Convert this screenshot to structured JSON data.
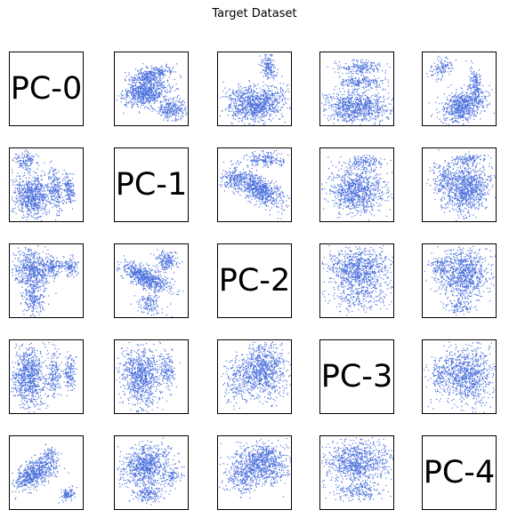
{
  "title": "Target Dataset",
  "colors": {
    "points": "#4a6fdc",
    "frame": "#000000",
    "background": "#ffffff"
  },
  "chart_data": {
    "type": "scatter",
    "title": "Target Dataset",
    "layout": "pairwise-matrix",
    "rows": 5,
    "cols": 5,
    "diagonal_labels": [
      "PC-0",
      "PC-1",
      "PC-2",
      "PC-3",
      "PC-4"
    ],
    "axes_ticks_visible": false,
    "grid": false,
    "point_color": "#4a6fdc",
    "panels": [
      {
        "row": 0,
        "col": 1,
        "x": "PC-1",
        "y": "PC-0",
        "clusters": [
          {
            "cx": 0.42,
            "cy": 0.55,
            "sx": 0.16,
            "sy": 0.09,
            "n": 700,
            "r": -0.2
          },
          {
            "cx": 0.55,
            "cy": 0.25,
            "sx": 0.13,
            "sy": 0.04,
            "n": 180,
            "r": -0.25
          },
          {
            "cx": 0.42,
            "cy": 0.35,
            "sx": 0.12,
            "sy": 0.035,
            "n": 160,
            "r": -0.25
          },
          {
            "cx": 0.78,
            "cy": 0.78,
            "sx": 0.11,
            "sy": 0.07,
            "n": 260,
            "r": -0.1
          }
        ]
      },
      {
        "row": 0,
        "col": 2,
        "x": "PC-2",
        "y": "PC-0",
        "clusters": [
          {
            "cx": 0.55,
            "cy": 0.72,
            "sx": 0.18,
            "sy": 0.12,
            "n": 800,
            "r": -0.3
          },
          {
            "cx": 0.68,
            "cy": 0.2,
            "sx": 0.05,
            "sy": 0.1,
            "n": 160,
            "r": 0.1
          },
          {
            "cx": 0.28,
            "cy": 0.62,
            "sx": 0.12,
            "sy": 0.1,
            "n": 160,
            "r": 0.0
          }
        ]
      },
      {
        "row": 0,
        "col": 3,
        "x": "PC-3",
        "y": "PC-0",
        "clusters": [
          {
            "cx": 0.5,
            "cy": 0.75,
            "sx": 0.22,
            "sy": 0.11,
            "n": 850,
            "r": 0.0
          },
          {
            "cx": 0.52,
            "cy": 0.2,
            "sx": 0.16,
            "sy": 0.05,
            "n": 200,
            "r": 0.0
          },
          {
            "cx": 0.52,
            "cy": 0.4,
            "sx": 0.15,
            "sy": 0.05,
            "n": 200,
            "r": 0.0
          }
        ]
      },
      {
        "row": 0,
        "col": 4,
        "x": "PC-4",
        "y": "PC-0",
        "clusters": [
          {
            "cx": 0.55,
            "cy": 0.72,
            "sx": 0.15,
            "sy": 0.12,
            "n": 700,
            "r": -0.35
          },
          {
            "cx": 0.72,
            "cy": 0.42,
            "sx": 0.05,
            "sy": 0.12,
            "n": 150,
            "r": 0.4
          },
          {
            "cx": 0.25,
            "cy": 0.2,
            "sx": 0.08,
            "sy": 0.07,
            "n": 120,
            "r": -0.3
          }
        ]
      },
      {
        "row": 1,
        "col": 0,
        "x": "PC-0",
        "y": "PC-1",
        "clusters": [
          {
            "cx": 0.3,
            "cy": 0.65,
            "sx": 0.13,
            "sy": 0.15,
            "n": 750,
            "r": 0.0
          },
          {
            "cx": 0.62,
            "cy": 0.55,
            "sx": 0.05,
            "sy": 0.17,
            "n": 200,
            "r": 0.45
          },
          {
            "cx": 0.8,
            "cy": 0.55,
            "sx": 0.04,
            "sy": 0.12,
            "n": 150,
            "r": 0.45
          },
          {
            "cx": 0.22,
            "cy": 0.15,
            "sx": 0.08,
            "sy": 0.07,
            "n": 140,
            "r": 0.0
          }
        ]
      },
      {
        "row": 1,
        "col": 2,
        "x": "PC-2",
        "y": "PC-1",
        "clusters": [
          {
            "cx": 0.55,
            "cy": 0.55,
            "sx": 0.18,
            "sy": 0.12,
            "n": 750,
            "r": 0.6
          },
          {
            "cx": 0.65,
            "cy": 0.15,
            "sx": 0.15,
            "sy": 0.05,
            "n": 200,
            "r": 0.1
          },
          {
            "cx": 0.2,
            "cy": 0.4,
            "sx": 0.09,
            "sy": 0.08,
            "n": 150,
            "r": 0.0
          }
        ]
      },
      {
        "row": 1,
        "col": 3,
        "x": "PC-3",
        "y": "PC-1",
        "clusters": [
          {
            "cx": 0.5,
            "cy": 0.58,
            "sx": 0.2,
            "sy": 0.16,
            "n": 900,
            "r": 0.0
          },
          {
            "cx": 0.58,
            "cy": 0.17,
            "sx": 0.15,
            "sy": 0.05,
            "n": 150,
            "r": 0.0
          }
        ]
      },
      {
        "row": 1,
        "col": 4,
        "x": "PC-4",
        "y": "PC-1",
        "clusters": [
          {
            "cx": 0.6,
            "cy": 0.55,
            "sx": 0.17,
            "sy": 0.16,
            "n": 900,
            "r": -0.1
          },
          {
            "cx": 0.3,
            "cy": 0.38,
            "sx": 0.1,
            "sy": 0.12,
            "n": 180,
            "r": 0.0
          },
          {
            "cx": 0.62,
            "cy": 0.15,
            "sx": 0.12,
            "sy": 0.05,
            "n": 120,
            "r": 0.0
          }
        ]
      },
      {
        "row": 2,
        "col": 0,
        "x": "PC-0",
        "y": "PC-2",
        "clusters": [
          {
            "cx": 0.3,
            "cy": 0.35,
            "sx": 0.12,
            "sy": 0.14,
            "n": 600,
            "r": 0.0
          },
          {
            "cx": 0.32,
            "cy": 0.75,
            "sx": 0.08,
            "sy": 0.12,
            "n": 200,
            "r": 0.0
          },
          {
            "cx": 0.6,
            "cy": 0.3,
            "sx": 0.06,
            "sy": 0.06,
            "n": 130,
            "r": 0.0
          },
          {
            "cx": 0.82,
            "cy": 0.3,
            "sx": 0.06,
            "sy": 0.06,
            "n": 110,
            "r": 0.0
          }
        ]
      },
      {
        "row": 2,
        "col": 1,
        "x": "PC-1",
        "y": "PC-2",
        "clusters": [
          {
            "cx": 0.42,
            "cy": 0.45,
            "sx": 0.17,
            "sy": 0.1,
            "n": 650,
            "r": 0.7
          },
          {
            "cx": 0.7,
            "cy": 0.22,
            "sx": 0.08,
            "sy": 0.07,
            "n": 180,
            "r": 0.0
          },
          {
            "cx": 0.45,
            "cy": 0.8,
            "sx": 0.09,
            "sy": 0.08,
            "n": 130,
            "r": 0.0
          }
        ]
      },
      {
        "row": 2,
        "col": 3,
        "x": "PC-3",
        "y": "PC-2",
        "clusters": [
          {
            "cx": 0.5,
            "cy": 0.35,
            "sx": 0.22,
            "sy": 0.15,
            "n": 900,
            "r": 0.0
          },
          {
            "cx": 0.5,
            "cy": 0.72,
            "sx": 0.2,
            "sy": 0.1,
            "n": 200,
            "r": 0.0
          }
        ]
      },
      {
        "row": 2,
        "col": 4,
        "x": "PC-4",
        "y": "PC-2",
        "clusters": [
          {
            "cx": 0.55,
            "cy": 0.4,
            "sx": 0.18,
            "sy": 0.18,
            "n": 900,
            "r": 0.0
          },
          {
            "cx": 0.25,
            "cy": 0.3,
            "sx": 0.07,
            "sy": 0.07,
            "n": 100,
            "r": 0.0
          },
          {
            "cx": 0.5,
            "cy": 0.85,
            "sx": 0.08,
            "sy": 0.05,
            "n": 80,
            "r": 0.0
          }
        ]
      },
      {
        "row": 3,
        "col": 0,
        "x": "PC-0",
        "y": "PC-3",
        "clusters": [
          {
            "cx": 0.25,
            "cy": 0.5,
            "sx": 0.11,
            "sy": 0.2,
            "n": 800,
            "r": 0.0
          },
          {
            "cx": 0.6,
            "cy": 0.45,
            "sx": 0.05,
            "sy": 0.15,
            "n": 180,
            "r": 0.0
          },
          {
            "cx": 0.82,
            "cy": 0.45,
            "sx": 0.04,
            "sy": 0.13,
            "n": 140,
            "r": 0.0
          }
        ]
      },
      {
        "row": 3,
        "col": 1,
        "x": "PC-1",
        "y": "PC-3",
        "clusters": [
          {
            "cx": 0.35,
            "cy": 0.5,
            "sx": 0.14,
            "sy": 0.2,
            "n": 850,
            "r": 0.1
          },
          {
            "cx": 0.72,
            "cy": 0.42,
            "sx": 0.05,
            "sy": 0.14,
            "n": 150,
            "r": 0.2
          }
        ]
      },
      {
        "row": 3,
        "col": 2,
        "x": "PC-2",
        "y": "PC-3",
        "clusters": [
          {
            "cx": 0.62,
            "cy": 0.4,
            "sx": 0.15,
            "sy": 0.2,
            "n": 850,
            "r": 0.0
          },
          {
            "cx": 0.28,
            "cy": 0.55,
            "sx": 0.12,
            "sy": 0.15,
            "n": 220,
            "r": 0.0
          }
        ]
      },
      {
        "row": 3,
        "col": 4,
        "x": "PC-4",
        "y": "PC-3",
        "clusters": [
          {
            "cx": 0.58,
            "cy": 0.45,
            "sx": 0.2,
            "sy": 0.2,
            "n": 950,
            "r": 0.0
          },
          {
            "cx": 0.2,
            "cy": 0.45,
            "sx": 0.05,
            "sy": 0.1,
            "n": 80,
            "r": 0.0
          }
        ]
      },
      {
        "row": 4,
        "col": 0,
        "x": "PC-0",
        "y": "PC-4",
        "clusters": [
          {
            "cx": 0.35,
            "cy": 0.5,
            "sx": 0.15,
            "sy": 0.12,
            "n": 650,
            "r": -0.6
          },
          {
            "cx": 0.8,
            "cy": 0.78,
            "sx": 0.05,
            "sy": 0.05,
            "n": 100,
            "r": -0.3
          },
          {
            "cx": 0.55,
            "cy": 0.25,
            "sx": 0.05,
            "sy": 0.05,
            "n": 60,
            "r": 0.0
          }
        ]
      },
      {
        "row": 4,
        "col": 1,
        "x": "PC-1",
        "y": "PC-4",
        "clusters": [
          {
            "cx": 0.42,
            "cy": 0.4,
            "sx": 0.17,
            "sy": 0.14,
            "n": 800,
            "r": -0.2
          },
          {
            "cx": 0.45,
            "cy": 0.78,
            "sx": 0.1,
            "sy": 0.06,
            "n": 180,
            "r": 0.0
          },
          {
            "cx": 0.75,
            "cy": 0.55,
            "sx": 0.07,
            "sy": 0.08,
            "n": 100,
            "r": 0.0
          }
        ]
      },
      {
        "row": 4,
        "col": 2,
        "x": "PC-2",
        "y": "PC-4",
        "clusters": [
          {
            "cx": 0.6,
            "cy": 0.35,
            "sx": 0.17,
            "sy": 0.14,
            "n": 800,
            "r": 0.0
          },
          {
            "cx": 0.32,
            "cy": 0.55,
            "sx": 0.13,
            "sy": 0.12,
            "n": 250,
            "r": 0.0
          }
        ]
      },
      {
        "row": 4,
        "col": 3,
        "x": "PC-3",
        "y": "PC-4",
        "clusters": [
          {
            "cx": 0.5,
            "cy": 0.35,
            "sx": 0.23,
            "sy": 0.15,
            "n": 900,
            "r": 0.0
          },
          {
            "cx": 0.5,
            "cy": 0.75,
            "sx": 0.17,
            "sy": 0.06,
            "n": 200,
            "r": 0.0
          }
        ]
      }
    ]
  }
}
